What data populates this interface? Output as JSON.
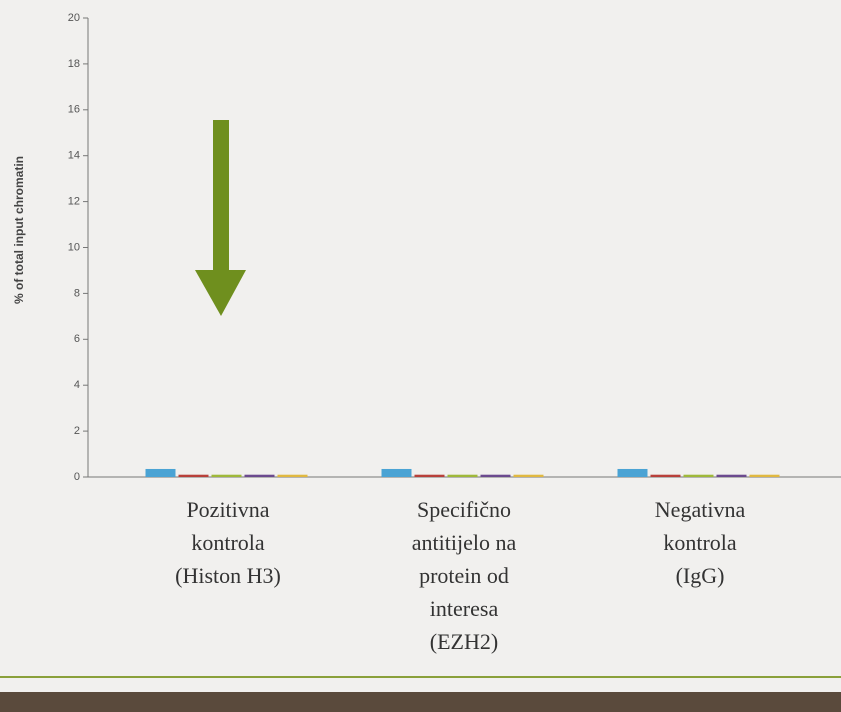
{
  "chart_data": {
    "type": "bar",
    "ylabel": "% of total input chromatin",
    "categories": [
      "Pozitivna\nkontrola\n(Histon H3)",
      "Specifično\nantitijelo na\nprotein od\ninteresa\n(EZH2)",
      "Negativna\nkontrola\n(IgG)"
    ],
    "series": [
      {
        "color": "#4aa3d4",
        "values": [
          0.35,
          0.35,
          0.35
        ]
      },
      {
        "color": "#b8403a",
        "values": [
          0.1,
          0.1,
          0.1
        ]
      },
      {
        "color": "#9fb83a",
        "values": [
          0.1,
          0.1,
          0.1
        ]
      },
      {
        "color": "#6b4a8e",
        "values": [
          0.1,
          0.1,
          0.1
        ]
      },
      {
        "color": "#e0b840",
        "values": [
          0.1,
          0.1,
          0.1
        ]
      }
    ],
    "ylim": [
      0,
      20
    ],
    "yticks": [
      0,
      2,
      4,
      6,
      8,
      10,
      12,
      14,
      16,
      18,
      20
    ],
    "grid": false
  }
}
